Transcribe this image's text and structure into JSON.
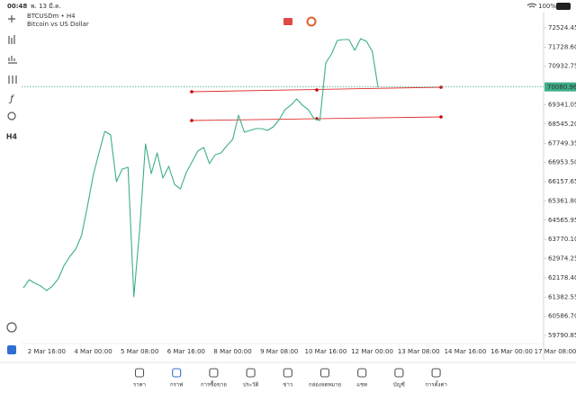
{
  "status_bar": {
    "time": "00:48",
    "date": "พ. 13 มี.ค.",
    "battery": "100%"
  },
  "symbol": {
    "name": "BTCUSDm • H4",
    "description": "Bitcoin vs US Dollar"
  },
  "left_toolbar": {
    "timeframe": "H4"
  },
  "chart_data": {
    "type": "line",
    "categories": [
      null,
      null,
      null,
      null,
      "2 Mar 16:00",
      null,
      null,
      null,
      null,
      null,
      null,
      null,
      "4 Mar 00:00",
      null,
      null,
      null,
      null,
      null,
      null,
      null,
      "5 Mar 08:00",
      null,
      null,
      null,
      null,
      null,
      null,
      null,
      "6 Mar 16:00",
      null,
      null,
      null,
      null,
      null,
      null,
      null,
      "8 Mar 00:00",
      null,
      null,
      null,
      null,
      null,
      null,
      null,
      "9 Mar 08:00",
      null,
      null,
      null,
      null,
      null,
      null,
      null,
      "10 Mar 16:00",
      null,
      null,
      null,
      null,
      null,
      null,
      null,
      "12 Mar 00:00",
      null,
      null,
      null,
      null,
      null,
      null,
      null,
      "13 Mar 08:00",
      null,
      null,
      null,
      null,
      null,
      null,
      null,
      "14 Mar 16:00",
      null,
      null,
      null,
      null,
      null,
      null,
      null,
      "16 Mar 00:00",
      null,
      null,
      null,
      null,
      null,
      null,
      null,
      "17 Mar 08:00"
    ],
    "series": [
      {
        "color": "#3dae88",
        "values": [
          61765,
          62100,
          61951,
          61839,
          61653,
          61839,
          62137,
          62695,
          63068,
          63366,
          63924,
          65115,
          66419,
          67350,
          68243,
          68094,
          66158,
          66679,
          66754,
          61392,
          64185,
          67722,
          66493,
          67350,
          66307,
          66791,
          66046,
          65860,
          66530,
          66977,
          67424,
          67573,
          66903,
          67275,
          67350,
          67647,
          67908,
          68913,
          68206,
          68280,
          68355,
          68355,
          68280,
          68429,
          68727,
          69137,
          69323,
          69583,
          69323,
          69137,
          68764,
          68690,
          71072,
          71445,
          72003,
          72040,
          72040,
          71594,
          72078,
          71966,
          71556,
          70067,
          null,
          null,
          null,
          null,
          null,
          null,
          null,
          null,
          null,
          null,
          null,
          null,
          null,
          null,
          null,
          null,
          null,
          null,
          null,
          null,
          null,
          null,
          null,
          null,
          null,
          null,
          null,
          null,
          null,
          null,
          null
        ]
      }
    ],
    "ylim": [
      59457,
      73157
    ],
    "yticks": [
      72524.45,
      {
        "value": 71728.6,
        "label": "71728.60"
      },
      70932.75,
      69341.05,
      {
        "value": 68545.2,
        "label": "68545.20"
      },
      67749.35,
      {
        "value": 66953.5,
        "label": "66953.50"
      },
      66157.65,
      {
        "value": 65361.8,
        "label": "65361.80"
      },
      64565.95,
      {
        "value": 63770.1,
        "label": "63770.10"
      },
      62974.25,
      {
        "value": 62178.4,
        "label": "62178.40"
      },
      61382.55,
      {
        "value": 60586.7,
        "label": "60586.70"
      },
      59790.85
    ],
    "current_price": 70080.96
  },
  "tabs": [
    "ราคา",
    "กราฟ",
    "การซื้อขาย",
    "ประวัติ",
    "ข่าว",
    "กล่องจดหมาย",
    "แชท",
    "บัญชี",
    "การตั้งค่า"
  ]
}
